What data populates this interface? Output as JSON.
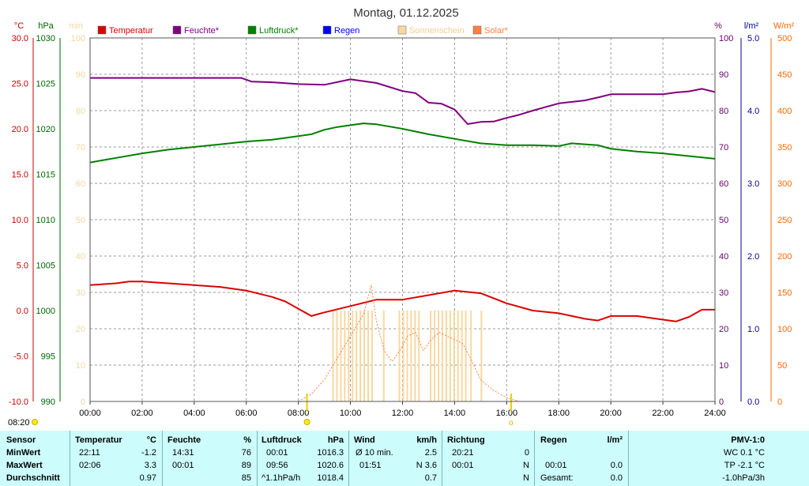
{
  "title": "Montag, 01.12.2025",
  "axes": {
    "temp": {
      "unit": "°C",
      "ticks": [
        "30.0",
        "25.0",
        "20.0",
        "15.0",
        "10.0",
        "5.0",
        "0.0",
        "-5.0",
        "-10.0"
      ],
      "color": "#cc0000"
    },
    "pressure": {
      "unit": "hPa",
      "ticks": [
        "1030",
        "1025",
        "1020",
        "1015",
        "1010",
        "1005",
        "1000",
        "995",
        "990"
      ],
      "color": "#006600"
    },
    "minutes": {
      "unit": "min",
      "ticks": [
        "100",
        "90",
        "80",
        "70",
        "60",
        "50",
        "40",
        "30",
        "20",
        "10",
        "0"
      ],
      "color": "#f0d8a0"
    },
    "humidity": {
      "unit": "%",
      "ticks": [
        "100",
        "90",
        "80",
        "70",
        "60",
        "50",
        "40",
        "30",
        "20",
        "10",
        "0"
      ],
      "color": "#660066"
    },
    "rain": {
      "unit": "l/m²",
      "ticks": [
        "5.0",
        "4.0",
        "3.0",
        "2.0",
        "1.0",
        "0.0"
      ],
      "color": "#000099"
    },
    "solar": {
      "unit": "W/m²",
      "ticks": [
        "500",
        "450",
        "400",
        "350",
        "300",
        "250",
        "200",
        "150",
        "100",
        "50",
        "0"
      ],
      "color": "#ff6600"
    },
    "x_ticks": [
      "00:00",
      "02:00",
      "04:00",
      "06:00",
      "08:00",
      "10:00",
      "12:00",
      "14:00",
      "16:00",
      "18:00",
      "20:00",
      "22:00",
      "24:00"
    ]
  },
  "legend": [
    {
      "label": "Temperatur",
      "color": "#dd0000"
    },
    {
      "label": "Feuchte*",
      "color": "#800080"
    },
    {
      "label": "Luftdruck*",
      "color": "#008000"
    },
    {
      "label": "Regen",
      "color": "#0000ff"
    },
    {
      "label": "Sonnenschein",
      "color": "#f8d8a0"
    },
    {
      "label": "Solar*",
      "color": "#ff8040"
    }
  ],
  "sun_times": {
    "sunrise": "08:20",
    "sunrise_hours": 8.33,
    "sunset_hours": 16.17,
    "sunset_mark": "o"
  },
  "chart_data": {
    "type": "line",
    "x_unit": "hours",
    "xlim": [
      0,
      24
    ],
    "series": [
      {
        "name": "Temperatur",
        "axis": "temp",
        "ylim": [
          -10,
          30
        ],
        "x": [
          0,
          1,
          1.5,
          2,
          3,
          4,
          5,
          6,
          7,
          7.5,
          8,
          8.5,
          9,
          10,
          11,
          12,
          13,
          14,
          15,
          16,
          17,
          18,
          19,
          19.5,
          20,
          21,
          22,
          22.5,
          23,
          23.5,
          24
        ],
        "y": [
          2.8,
          3.0,
          3.2,
          3.2,
          3.0,
          2.8,
          2.6,
          2.2,
          1.5,
          1.0,
          0.2,
          -0.6,
          -0.2,
          0.5,
          1.2,
          1.2,
          1.7,
          2.2,
          1.9,
          0.8,
          0.0,
          -0.3,
          -0.9,
          -1.1,
          -0.6,
          -0.6,
          -1.0,
          -1.2,
          -0.7,
          0.1,
          0.1
        ]
      },
      {
        "name": "Feuchte*",
        "axis": "humidity",
        "ylim": [
          0,
          100
        ],
        "x": [
          0,
          2,
          4,
          5.8,
          6.2,
          7,
          8,
          9,
          10,
          11,
          12,
          12.5,
          13,
          13.5,
          14,
          14.5,
          15,
          15.5,
          16,
          16.5,
          17,
          18,
          19,
          19.5,
          20,
          21,
          22,
          22.5,
          23,
          23.5,
          24
        ],
        "y": [
          89,
          89,
          89,
          89,
          88,
          87.8,
          87.3,
          87.1,
          88.6,
          87.6,
          85.4,
          84.8,
          82.2,
          81.9,
          80.3,
          76.3,
          76.9,
          77,
          78,
          78.9,
          80,
          82,
          82.8,
          83.6,
          84.5,
          84.5,
          84.5,
          85,
          85.3,
          86,
          85.1
        ]
      },
      {
        "name": "Luftdruck*",
        "axis": "pressure",
        "ylim": [
          990,
          1030
        ],
        "x": [
          0,
          1,
          2,
          3,
          4,
          5,
          6,
          7,
          8,
          8.5,
          9,
          9.5,
          10,
          10.5,
          11,
          12,
          13,
          14,
          15,
          16,
          17,
          18,
          18.5,
          19,
          19.5,
          20,
          21,
          22,
          23,
          24
        ],
        "y": [
          1016.3,
          1016.8,
          1017.3,
          1017.7,
          1018.0,
          1018.3,
          1018.6,
          1018.8,
          1019.2,
          1019.4,
          1019.9,
          1020.2,
          1020.4,
          1020.6,
          1020.5,
          1020.0,
          1019.4,
          1018.9,
          1018.4,
          1018.2,
          1018.2,
          1018.1,
          1018.4,
          1018.3,
          1018.2,
          1017.8,
          1017.5,
          1017.3,
          1017.0,
          1016.7
        ]
      },
      {
        "name": "Solar*",
        "axis": "solar",
        "ylim": [
          0,
          500
        ],
        "x": [
          8,
          8.5,
          9,
          9.5,
          10,
          10.5,
          10.8,
          11,
          11.3,
          11.6,
          11.9,
          12.2,
          12.5,
          12.8,
          13.1,
          13.4,
          13.7,
          14,
          14.3,
          14.6,
          15,
          15.5,
          16,
          16.5
        ],
        "y": [
          0,
          10,
          30,
          60,
          90,
          120,
          160,
          110,
          70,
          55,
          70,
          90,
          95,
          70,
          85,
          95,
          90,
          85,
          80,
          60,
          30,
          15,
          5,
          0
        ]
      }
    ],
    "sunshine_bars": [
      9.3,
      9.45,
      9.6,
      9.75,
      9.9,
      10.05,
      10.2,
      10.35,
      10.5,
      10.65,
      10.8,
      11.25,
      11.85,
      12.0,
      12.15,
      12.3,
      12.45,
      12.6,
      13.05,
      13.2,
      13.35,
      13.5,
      13.65,
      13.8,
      13.95,
      14.1,
      14.25,
      14.4,
      14.6,
      15.0
    ],
    "sunshine_bar_minutes": 5
  },
  "stats": {
    "headers": {
      "sensor": "Sensor",
      "temp": "Temperatur",
      "temp_unit": "°C",
      "hum": "Feuchte",
      "hum_unit": "%",
      "press": "Luftdruck",
      "press_unit": "hPa",
      "wind": "Wind",
      "wind_unit": "km/h",
      "dir": "Richtung",
      "rain": "Regen",
      "rain_unit": "l/m²",
      "pmv": "PMV-1:0"
    },
    "labels": {
      "min": "MinWert",
      "max": "MaxWert",
      "avg": "Durchschnitt"
    },
    "min": {
      "temp_time": "22:11",
      "temp": "-1.2",
      "hum_time": "14:31",
      "hum": "76",
      "press_time": "00:01",
      "press": "1016.3",
      "wind_label": "Ø 10 min.",
      "wind": "2.5",
      "dir_time": "20:21",
      "dir": "0",
      "pmv": "WC 0.1 °C"
    },
    "max": {
      "temp_time": "02:06",
      "temp": "3.3",
      "hum_time": "00:01",
      "hum": "89",
      "press_time": "09:56",
      "press": "1020.6",
      "wind_time": "01:51",
      "wind": "N 3.6",
      "dir_time": "00:01",
      "dir": "N",
      "rain_time": "00:01",
      "rain": "0.0",
      "pmv": "TP -2.1 °C"
    },
    "avg": {
      "temp": "0.97",
      "hum": "85",
      "press_label": "^1.1hPa/h",
      "press": "1018.4",
      "wind": "0.7",
      "dir": "N",
      "rain_label": "Gesamt:",
      "rain": "0.0",
      "pmv": "-1.0hPa/3h"
    }
  }
}
